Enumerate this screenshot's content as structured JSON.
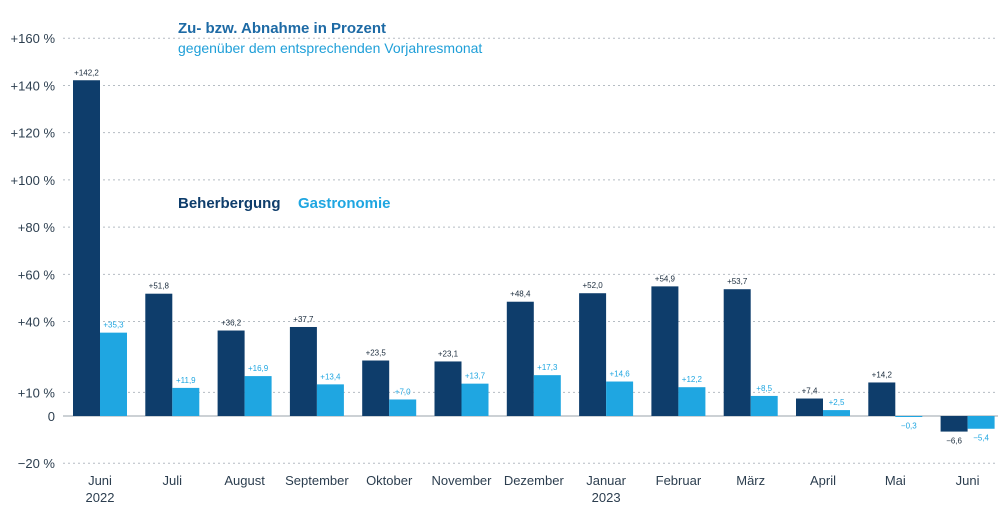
{
  "chart_data": {
    "type": "bar",
    "title": "Zu- bzw. Abnahme in Prozent",
    "subtitle": "gegenüber dem entsprechenden Vorjahresmonat",
    "categories": [
      "Juni",
      "Juli",
      "August",
      "September",
      "Oktober",
      "November",
      "Dezember",
      "Januar",
      "Februar",
      "März",
      "April",
      "Mai",
      "Juni"
    ],
    "category_sublabels": [
      "2022",
      "",
      "",
      "",
      "",
      "",
      "",
      "2023",
      "",
      "",
      "",
      "",
      ""
    ],
    "series": [
      {
        "name": "Beherbergung",
        "color": "#0e3d6b",
        "values": [
          142.2,
          51.8,
          36.2,
          37.7,
          23.5,
          23.1,
          48.4,
          52.0,
          54.9,
          53.7,
          7.4,
          14.2,
          -6.6
        ],
        "labels": [
          "+142,2",
          "+51,8",
          "+36,2",
          "+37,7",
          "+23,5",
          "+23,1",
          "+48,4",
          "+52,0",
          "+54,9",
          "+53,7",
          "+7,4",
          "+14,2",
          "−6,6"
        ]
      },
      {
        "name": "Gastronomie",
        "color": "#1fa6e1",
        "values": [
          35.3,
          11.9,
          16.9,
          13.4,
          7.0,
          13.7,
          17.3,
          14.6,
          12.2,
          8.5,
          2.5,
          -0.3,
          -5.4
        ],
        "labels": [
          "+35,3",
          "+11,9",
          "+16,9",
          "+13,4",
          "+7,0",
          "+13,7",
          "+17,3",
          "+14,6",
          "+12,2",
          "+8,5",
          "+2,5",
          "−0,3",
          "−5,4"
        ]
      }
    ],
    "yticks": [
      -20,
      0,
      10,
      40,
      60,
      80,
      100,
      120,
      140,
      160
    ],
    "ytick_labels": [
      "−20 %",
      "0",
      "+10 %",
      "+40 %",
      "+60 %",
      "+80 %",
      "+100 %",
      "+120 %",
      "+140 %",
      "+160 %"
    ],
    "ylim": [
      -20,
      160
    ],
    "grid": true,
    "legend": "upper-middle",
    "xlabel": "",
    "ylabel": ""
  }
}
